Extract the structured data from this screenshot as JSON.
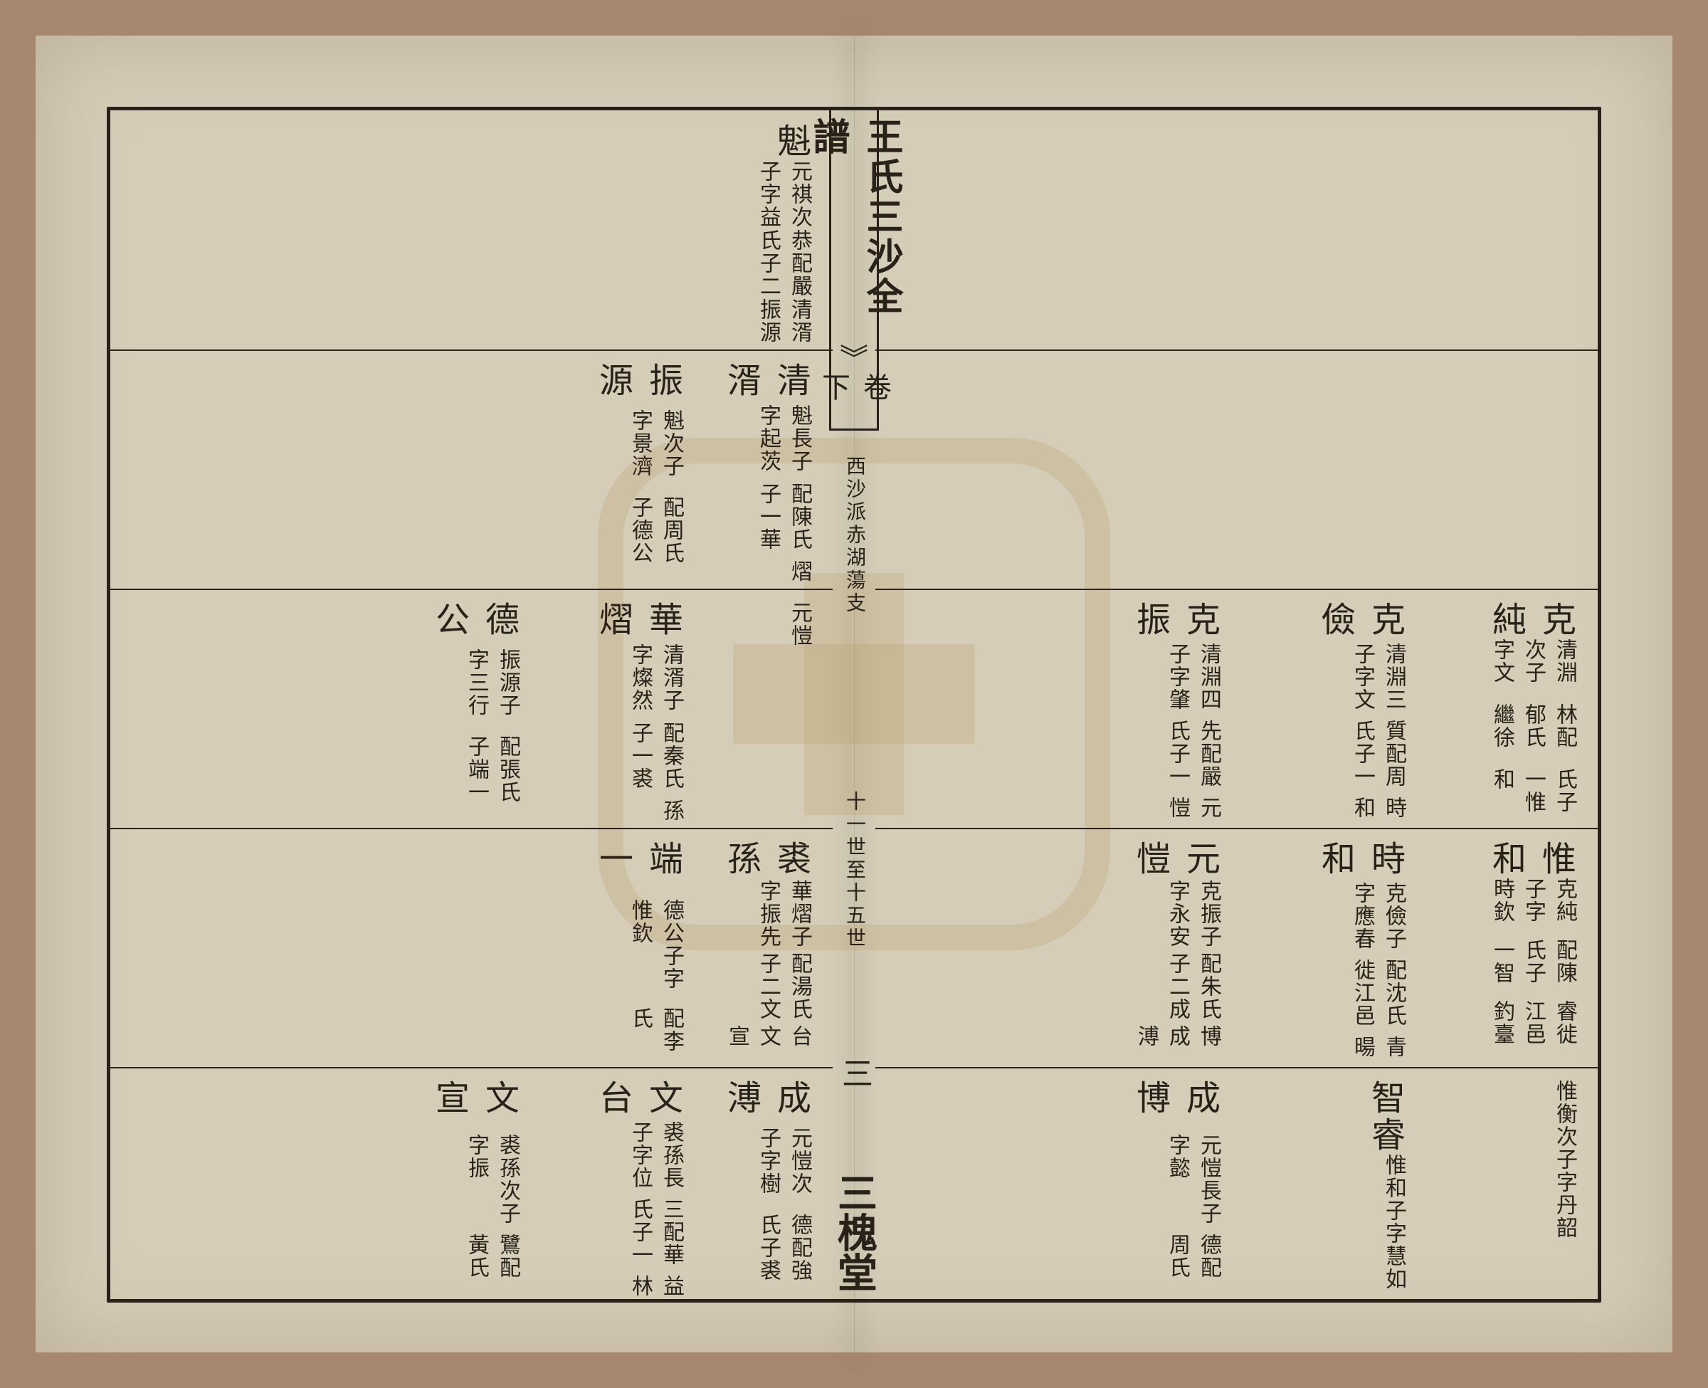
{
  "center": {
    "title_main": "王氏三沙全譜",
    "title_sub": "卷下",
    "mid_top": "西沙派赤湖蕩支",
    "mid_sub": "十一世至十五世",
    "page_num": "三",
    "hall": "三槐堂"
  },
  "right_page": {
    "r0": [],
    "r1": [],
    "r2": [
      {
        "head": "克純",
        "lines": [
          "清淵次子字文",
          "林配郁氏繼徐",
          "氏子一惟和"
        ]
      },
      {
        "head": "克儉",
        "lines": [
          "清淵三子字文",
          "質配周氏子一",
          "時和"
        ]
      },
      {
        "head": "克振",
        "lines": [
          "清淵四子字肇",
          "先配嚴氏子一",
          "元愷"
        ]
      }
    ],
    "r3": [
      {
        "head": "惟和",
        "lines": [
          "克純子字時欽",
          "配陳氏子一智",
          "睿徙江邑釣臺"
        ]
      },
      {
        "head": "時和",
        "lines": [
          "克儉子字應春",
          "配沈氏徙江邑",
          "青暘"
        ]
      },
      {
        "head": "元愷",
        "lines": [
          "克振子字永安",
          "配朱氏子二成",
          "博成溥"
        ]
      }
    ],
    "r4": [
      {
        "head": "",
        "lines": [
          "惟衡次子字丹",
          "韶"
        ]
      },
      {
        "head": "智睿",
        "lines": [
          "惟和子字慧如"
        ]
      },
      {
        "head": "成博",
        "lines": [
          "元愷長子字懿",
          "德配周氏"
        ]
      }
    ]
  },
  "left_page": {
    "r0": [
      {
        "head": "魁",
        "lines": [
          "元祺次子字益",
          "恭配嚴氏子二",
          "清湑振源"
        ]
      }
    ],
    "r1": [
      {
        "head": "清湑",
        "lines": [
          "魁長子字起茨",
          "配陳氏子一華",
          "熠"
        ]
      },
      {
        "head": "振源",
        "lines": [
          "魁次子字景濟",
          "配周氏子德公"
        ]
      }
    ],
    "r2": [
      {
        "head": "",
        "lines": [
          "元愷"
        ]
      },
      {
        "head": "華熠",
        "lines": [
          "清湑子字燦然",
          "配秦氏子一裘",
          "孫"
        ]
      },
      {
        "head": "德公",
        "lines": [
          "振源子字三行",
          "配張氏子端一"
        ]
      }
    ],
    "r3": [
      {
        "head": "裘孫",
        "lines": [
          "華熠子字振先",
          "配湯氏子二文",
          "台文宣"
        ]
      },
      {
        "head": "端一",
        "lines": [
          "德公子字惟欽",
          "配李氏"
        ]
      }
    ],
    "r4": [
      {
        "head": "成溥",
        "lines": [
          "元愷次子字樹",
          "德配強氏子裘"
        ]
      },
      {
        "head": "文台",
        "lines": [
          "裘孫長子字位",
          "三配華氏子一",
          "益林"
        ]
      },
      {
        "head": "文宣",
        "lines": [
          "裘孫次子字振",
          "鷺配黃氏"
        ]
      }
    ]
  },
  "row_positions": [
    0,
    336,
    672,
    1008,
    1344
  ],
  "col_rights_right": [
    940,
    700,
    440,
    140
  ],
  "col_rights_left": [
    940,
    780,
    540,
    260,
    60
  ]
}
